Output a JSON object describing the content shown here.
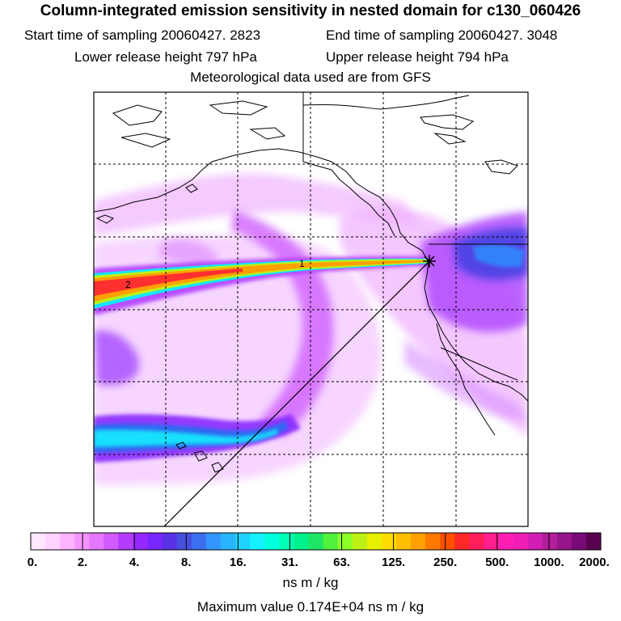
{
  "header": {
    "title": "Column-integrated emission sensitivity in nested domain for c130_060426",
    "start_label": "Start time of sampling 20060427.  2823",
    "end_label": "End time of sampling 20060427.  3048",
    "lower_label": "Lower release height  797 hPa",
    "upper_label": "Upper release height  794 hPa",
    "met_label": "Meteorological data used are from GFS"
  },
  "map": {
    "plume_labels": [
      "1",
      "2"
    ],
    "receptor_marker": "star"
  },
  "colorbar": {
    "tick_labels": [
      "0.",
      "2.",
      "4.",
      "8.",
      "16.",
      "31.",
      "63.",
      "125.",
      "250.",
      "500.",
      "1000.",
      "2000."
    ],
    "colors": [
      "#ffe6ff",
      "#ffd2ff",
      "#ffb4ff",
      "#f596ff",
      "#e678ff",
      "#d25aff",
      "#b43cff",
      "#9628ff",
      "#7828ff",
      "#5a32e6",
      "#4650dc",
      "#3c6ef0",
      "#3296ff",
      "#28b4ff",
      "#1ed2ff",
      "#14f0ff",
      "#00ffdc",
      "#00ffb4",
      "#00f08c",
      "#1ee664",
      "#50f03c",
      "#8cff28",
      "#bef014",
      "#e6f000",
      "#ffdc00",
      "#ffbe00",
      "#ffa000",
      "#ff7800",
      "#ff5000",
      "#ff2828",
      "#ff1e5a",
      "#ff1e8c",
      "#ff1eb4",
      "#f01eb4",
      "#d21eb4",
      "#b41e9a",
      "#96148c",
      "#7a0a78",
      "#5a0050"
    ],
    "unit": "ns m / kg",
    "max_text": "Maximum value  0.174E+04 ns m / kg"
  }
}
